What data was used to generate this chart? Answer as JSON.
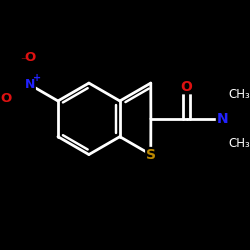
{
  "bg": "#000000",
  "bond_color": "#ffffff",
  "S_color": "#bb8800",
  "N_color": "#2222ff",
  "O_color": "#dd1111",
  "bond_lw": 2.0,
  "dbo": 0.06,
  "figsize": [
    2.5,
    2.5
  ],
  "dpi": 100,
  "xlim": [
    -0.1,
    2.6
  ],
  "ylim": [
    -0.1,
    2.6
  ]
}
